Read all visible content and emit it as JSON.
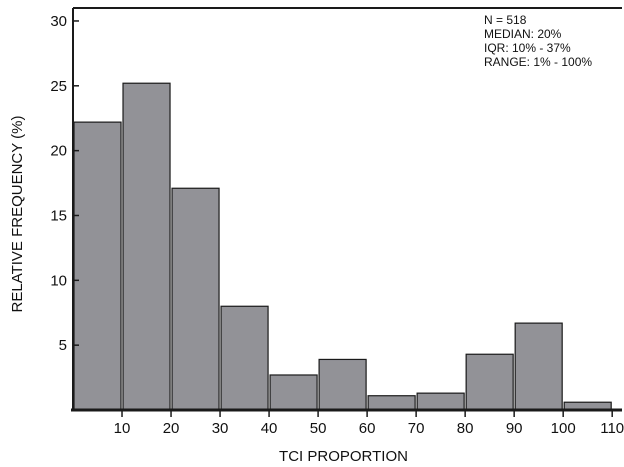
{
  "chart_data": {
    "type": "bar",
    "xlabel": "TCI PROPORTION",
    "ylabel": "RELATIVE FREQUENCY (%)",
    "bins": [
      {
        "start": 0,
        "end": 10,
        "value": 22.2
      },
      {
        "start": 10,
        "end": 20,
        "value": 25.2
      },
      {
        "start": 20,
        "end": 30,
        "value": 17.1
      },
      {
        "start": 30,
        "end": 40,
        "value": 8.0
      },
      {
        "start": 40,
        "end": 50,
        "value": 2.7
      },
      {
        "start": 50,
        "end": 60,
        "value": 3.9
      },
      {
        "start": 60,
        "end": 70,
        "value": 1.1
      },
      {
        "start": 70,
        "end": 80,
        "value": 1.3
      },
      {
        "start": 80,
        "end": 90,
        "value": 4.3
      },
      {
        "start": 90,
        "end": 100,
        "value": 6.7
      },
      {
        "start": 100,
        "end": 110,
        "value": 0.6
      }
    ],
    "xlim": [
      0,
      112
    ],
    "ylim": [
      0,
      31
    ],
    "xticks": [
      10,
      20,
      30,
      40,
      50,
      60,
      70,
      80,
      90,
      100,
      110
    ],
    "yticks": [
      5,
      10,
      15,
      20,
      25,
      30
    ],
    "xtick_labels": [
      "10",
      "20",
      "30",
      "40",
      "50",
      "60",
      "70",
      "80",
      "90",
      "100",
      "110"
    ],
    "ytick_labels": [
      "5",
      "10",
      "15",
      "20",
      "25",
      "30"
    ],
    "annotation": [
      "N = 518",
      "MEDIAN: 20%",
      "IQR: 10% - 37%",
      "RANGE: 1% - 100%"
    ],
    "bar_color": "#929297",
    "grid": false,
    "legend": "none"
  }
}
